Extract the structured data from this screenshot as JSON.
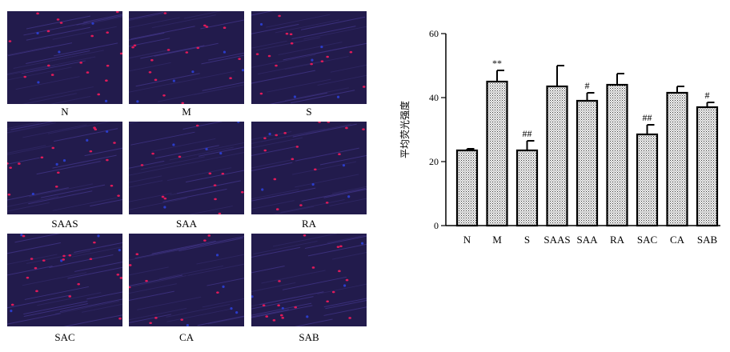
{
  "panels": [
    {
      "label": "N"
    },
    {
      "label": "M"
    },
    {
      "label": "S"
    },
    {
      "label": "SAAS"
    },
    {
      "label": "SAA"
    },
    {
      "label": "RA"
    },
    {
      "label": "SAC"
    },
    {
      "label": "CA"
    },
    {
      "label": "SAB"
    }
  ],
  "colors": {
    "panel_background": "#221b4c",
    "nuclei_red": "#e01a5a",
    "nuclei_blue": "#2b3cc8",
    "bar_stroke": "#000000"
  },
  "chart_data": {
    "type": "bar",
    "categories": [
      "N",
      "M",
      "S",
      "SAAS",
      "SAA",
      "RA",
      "SAC",
      "CA",
      "SAB"
    ],
    "values": [
      23.5,
      45,
      23.5,
      43.5,
      39,
      44,
      28.5,
      41.5,
      37
    ],
    "errors": [
      0.5,
      3.5,
      3,
      6.5,
      2.5,
      3.5,
      3,
      2,
      1.5
    ],
    "annotations": [
      "",
      "**",
      "##",
      "",
      "#",
      "",
      "##",
      "",
      "#"
    ],
    "ylabel": "平均荧光强度",
    "ylim": [
      0,
      60
    ],
    "yticks": [
      0,
      20,
      40,
      60
    ],
    "grid": false
  }
}
